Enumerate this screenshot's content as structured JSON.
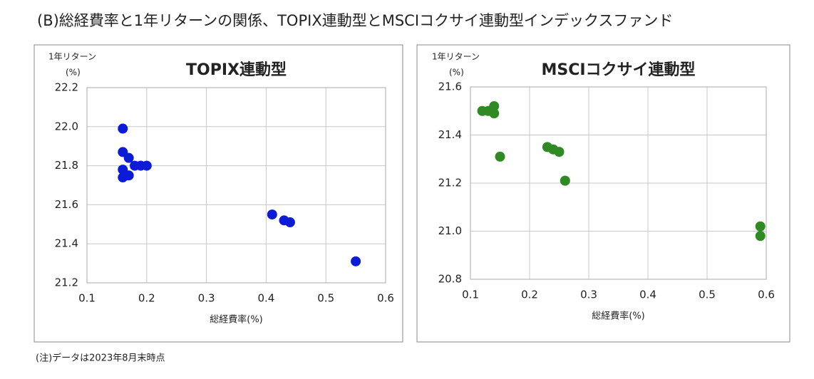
{
  "title": "(B)総経費率と1年リターンの関係、TOPIX連動型とMSCIコクサイ連動型インデックスファンド",
  "note": "(注)データは2023年8月末時点",
  "chart_data": [
    {
      "type": "scatter",
      "title": "TOPIX連動型",
      "ylabel": "1年リターン",
      "ylabel_unit": "(%)",
      "xlabel": "総経費率(%)",
      "color": "#0b1bd6",
      "grid": true,
      "xlim": [
        0.1,
        0.6
      ],
      "xticks": [
        0.1,
        0.2,
        0.3,
        0.4,
        0.5,
        0.6
      ],
      "ylim": [
        21.2,
        22.2
      ],
      "yticks": [
        21.2,
        21.4,
        21.6,
        21.8,
        {
          "value": 22,
          "label": "22.0"
        },
        22.2
      ],
      "x": [
        0.16,
        0.16,
        0.17,
        0.18,
        0.19,
        0.2,
        0.16,
        0.16,
        0.17,
        0.41,
        0.43,
        0.44,
        0.55
      ],
      "values": [
        21.99,
        21.87,
        21.84,
        21.8,
        21.8,
        21.8,
        21.78,
        21.74,
        21.75,
        21.55,
        21.52,
        21.51,
        21.31
      ]
    },
    {
      "type": "scatter",
      "title": "MSCIコクサイ連動型",
      "ylabel": "1年リターン",
      "ylabel_unit": "(%)",
      "xlabel": "総経費率(%)",
      "color": "#2f8a24",
      "grid": true,
      "xlim": [
        0.1,
        0.6
      ],
      "xticks": [
        0.1,
        0.2,
        0.3,
        0.4,
        0.5,
        0.6
      ],
      "ylim": [
        20.8,
        21.6
      ],
      "yticks": [
        20.8,
        {
          "value": 21,
          "label": "21.0"
        },
        21.2,
        21.4,
        21.6
      ],
      "x": [
        0.12,
        0.13,
        0.14,
        0.14,
        0.15,
        0.23,
        0.24,
        0.25,
        0.26,
        0.59,
        0.59
      ],
      "values": [
        21.5,
        21.5,
        21.52,
        21.49,
        21.31,
        21.35,
        21.34,
        21.33,
        21.21,
        21.02,
        20.98
      ]
    }
  ]
}
